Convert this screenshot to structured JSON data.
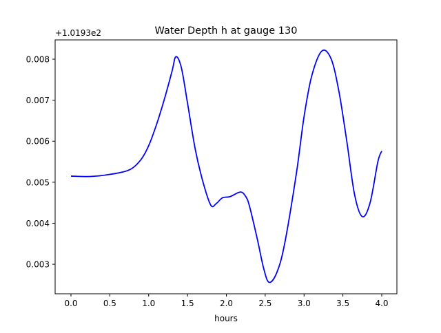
{
  "chart_data": {
    "type": "line",
    "title": "Water Depth h at gauge 130",
    "xlabel": "hours",
    "ylabel": "",
    "y_offset_label": "+1.0193e2",
    "xlim": [
      -0.204,
      4.195
    ],
    "ylim": [
      0.00228,
      0.00847
    ],
    "x_ticks": [
      0.0,
      0.5,
      1.0,
      1.5,
      2.0,
      2.5,
      3.0,
      3.5,
      4.0
    ],
    "x_tick_labels": [
      "0.0",
      "0.5",
      "1.0",
      "1.5",
      "2.0",
      "2.5",
      "3.0",
      "3.5",
      "4.0"
    ],
    "y_ticks": [
      0.003,
      0.004,
      0.005,
      0.006,
      0.007,
      0.008
    ],
    "y_tick_labels": [
      "0.003",
      "0.004",
      "0.005",
      "0.006",
      "0.007",
      "0.008"
    ],
    "grid": false,
    "series": [
      {
        "name": "h",
        "color": "#0000ff",
        "x": [
          0.0,
          0.25,
          0.5,
          0.75,
          0.9,
          1.0,
          1.1,
          1.2,
          1.3,
          1.35,
          1.42,
          1.5,
          1.6,
          1.7,
          1.8,
          1.87,
          1.95,
          2.05,
          2.18,
          2.25,
          2.3,
          2.4,
          2.48,
          2.55,
          2.65,
          2.75,
          2.9,
          3.0,
          3.1,
          3.23,
          3.35,
          3.45,
          3.55,
          3.65,
          3.75,
          3.85,
          3.95,
          4.0
        ],
        "y": [
          0.00515,
          0.00514,
          0.00519,
          0.0053,
          0.00555,
          0.00589,
          0.0064,
          0.00701,
          0.0077,
          0.00806,
          0.0078,
          0.00693,
          0.0058,
          0.005,
          0.00444,
          0.00448,
          0.00462,
          0.00465,
          0.00476,
          0.00465,
          0.0044,
          0.0036,
          0.0029,
          0.00256,
          0.0028,
          0.0035,
          0.0052,
          0.0066,
          0.0076,
          0.0082,
          0.008,
          0.0072,
          0.006,
          0.0047,
          0.00416,
          0.0045,
          0.0055,
          0.00576
        ]
      }
    ]
  }
}
